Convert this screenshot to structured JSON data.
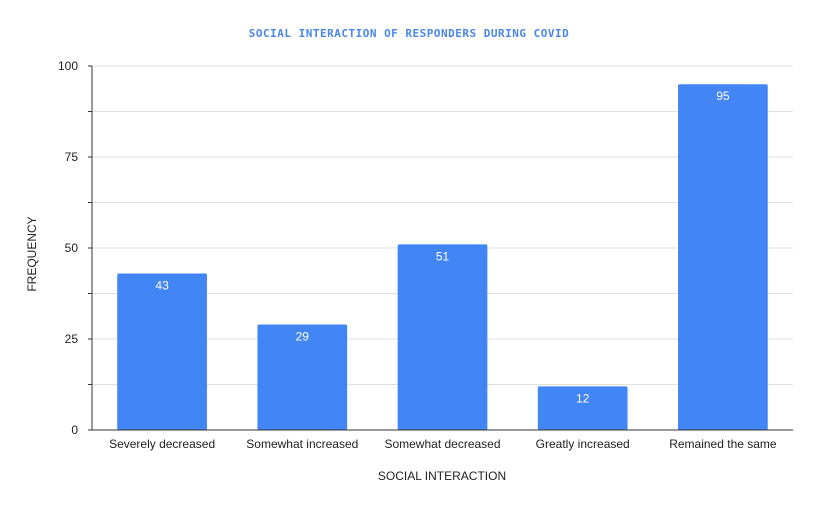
{
  "chart_data": {
    "type": "bar",
    "title": "SOCIAL INTERACTION OF RESPONDERS DURING COVID",
    "xlabel": "SOCIAL INTERACTION",
    "ylabel": "FREQUENCY",
    "categories": [
      "Severely decreased",
      "Somewhat increased",
      "Somewhat decreased",
      "Greatly increased",
      "Remained the same"
    ],
    "values": [
      43,
      29,
      51,
      12,
      95
    ],
    "ylim": [
      0,
      100
    ],
    "yticks": [
      0,
      25,
      50,
      75,
      100
    ],
    "grid": true,
    "legend": "none",
    "bar_color": "#4285f4",
    "title_color": "#4a86e8"
  }
}
